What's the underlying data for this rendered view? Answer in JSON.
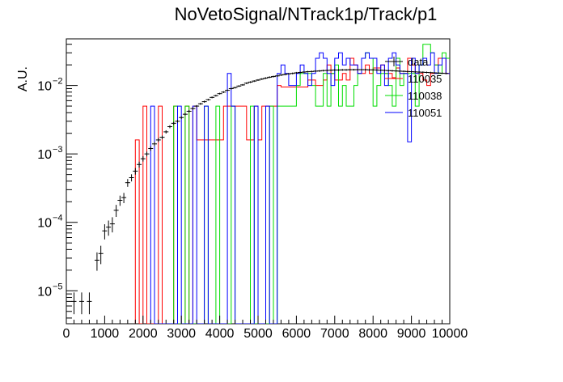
{
  "chart_data": {
    "type": "histogram-step",
    "title": "NoVetoSignal/NTrack1p/Track/p1",
    "xlabel": "",
    "ylabel": "A.U.",
    "xlim": [
      0,
      10000
    ],
    "ylim": [
      3.3e-06,
      0.048
    ],
    "yscale": "log",
    "grid": false,
    "legend_position": "top-right",
    "x_ticks": [
      0,
      1000,
      2000,
      3000,
      4000,
      5000,
      6000,
      7000,
      8000,
      9000,
      10000
    ],
    "y_ticks": [
      {
        "value": 1e-05,
        "base": "10",
        "exp": "−5"
      },
      {
        "value": 0.0001,
        "base": "10",
        "exp": "−4"
      },
      {
        "value": 0.001,
        "base": "10",
        "exp": "−3"
      },
      {
        "value": 0.01,
        "base": "10",
        "exp": "−2"
      }
    ],
    "data_points": {
      "name": "data",
      "color": "#000000",
      "x": [
        200,
        400,
        600,
        800,
        900,
        1000,
        1100,
        1200,
        1300,
        1400,
        1500,
        1600,
        1700,
        1800,
        1900,
        2000,
        2100,
        2200,
        2300,
        2400,
        2500,
        2600,
        2700,
        2800,
        2900,
        3000,
        3100,
        3200,
        3300,
        3400,
        3500,
        3600,
        3700,
        3800,
        3900,
        4000,
        4100,
        4200,
        4300,
        4400,
        4500,
        4600,
        4700,
        4800,
        4900,
        5000,
        5100,
        5200,
        5300,
        5400,
        5500,
        5600,
        5700,
        5800,
        5900,
        6000,
        6100,
        6200,
        6300,
        6400,
        6500,
        6600,
        6700,
        6800,
        6900,
        7000,
        7100,
        7200,
        7300,
        7400,
        7500,
        7600,
        7700,
        7800,
        7900,
        8000,
        8100,
        8200,
        8300,
        8400,
        8500,
        8600,
        8700,
        8800,
        8900,
        9000,
        9100,
        9200,
        9300,
        9400,
        9500,
        9600,
        9700,
        9800,
        9900
      ],
      "y": [
        7e-06,
        7e-06,
        7e-06,
        2.8e-05,
        3.5e-05,
        7.5e-05,
        8.5e-05,
        9.5e-05,
        0.00015,
        0.00021,
        0.00023,
        0.00038,
        0.00045,
        0.00056,
        0.0007,
        0.00085,
        0.001,
        0.0012,
        0.0014,
        0.0016,
        0.00175,
        0.0021,
        0.0025,
        0.0028,
        0.003,
        0.0034,
        0.0038,
        0.0042,
        0.0046,
        0.005,
        0.0054,
        0.0058,
        0.0062,
        0.0067,
        0.0071,
        0.0076,
        0.008,
        0.0085,
        0.009,
        0.0093,
        0.0098,
        0.0102,
        0.0108,
        0.0112,
        0.0116,
        0.012,
        0.0124,
        0.0128,
        0.0132,
        0.0135,
        0.0138,
        0.0142,
        0.0145,
        0.0148,
        0.015,
        0.0153,
        0.0155,
        0.0157,
        0.0159,
        0.016,
        0.0162,
        0.0163,
        0.0165,
        0.0166,
        0.0167,
        0.0168,
        0.0168,
        0.0169,
        0.0169,
        0.017,
        0.017,
        0.017,
        0.017,
        0.017,
        0.0169,
        0.0169,
        0.0168,
        0.0167,
        0.0166,
        0.0165,
        0.0164,
        0.0163,
        0.0162,
        0.0161,
        0.016,
        0.0159,
        0.0158,
        0.0157,
        0.0156,
        0.0155,
        0.0154,
        0.0153,
        0.0152,
        0.0151,
        0.015
      ],
      "rel_err": [
        0.35,
        0.35,
        0.35,
        0.3,
        0.3,
        0.25,
        0.25,
        0.25,
        0.2,
        0.17,
        0.17,
        0.13,
        0.12,
        0.11,
        0.1,
        0.09,
        0.08,
        0.075,
        0.07,
        0.065,
        0.06,
        0.055,
        0.05,
        0.05,
        0.045,
        0.045,
        0.04,
        0.04,
        0.04,
        0.035,
        0.035,
        0.035,
        0.03,
        0.03,
        0.03,
        0.03,
        0.03,
        0.03,
        0.03,
        0.03,
        0.03,
        0.03,
        0.03,
        0.03,
        0.03,
        0.03,
        0.03,
        0.03,
        0.03,
        0.03,
        0.03,
        0.03,
        0.03,
        0.03,
        0.03,
        0.03,
        0.03,
        0.03,
        0.03,
        0.03,
        0.03,
        0.03,
        0.03,
        0.03,
        0.03,
        0.03,
        0.03,
        0.03,
        0.03,
        0.03,
        0.03,
        0.03,
        0.03,
        0.03,
        0.03,
        0.03,
        0.03,
        0.03,
        0.03,
        0.03,
        0.03,
        0.03,
        0.03,
        0.03,
        0.03,
        0.03,
        0.03,
        0.03,
        0.03,
        0.03,
        0.03,
        0.03,
        0.03,
        0.03,
        0.03
      ]
    },
    "series": [
      {
        "name": "110035",
        "color": "#ff0000",
        "bin_width": 100,
        "edges_start": 1800,
        "values": [
          0.0016,
          0,
          0.005,
          0,
          0,
          0,
          0.005,
          0,
          0,
          0,
          0.005,
          0,
          0,
          0.005,
          0,
          0.005,
          0.0016,
          0.0016,
          0.0016,
          0.0016,
          0.0016,
          0.0016,
          0.0016,
          0.005,
          0.005,
          0.005,
          0.005,
          0.005,
          0.005,
          0.0016,
          0.0016,
          0.005,
          0.0016,
          0.005,
          0.005,
          0.005,
          0.005,
          0.01,
          0.0095,
          0.0095,
          0.0095,
          0.0095,
          0.0095,
          0.0095,
          0.0095,
          0.012,
          0.012,
          0.01,
          0.01,
          0.012,
          0.02,
          0.015,
          0.012,
          0.012,
          0.015,
          0.012,
          0.025,
          0.02,
          0.015,
          0.015,
          0.02,
          0.015,
          0.018,
          0.018,
          0.02,
          0.015,
          0.015,
          0.013,
          0.018,
          0.015,
          0.015,
          0.025,
          0.02,
          0.015,
          0.015,
          0.012,
          0.01,
          0.015,
          0.02,
          0.025,
          0.025,
          0.015
        ]
      },
      {
        "name": "110038",
        "color": "#00dd00",
        "bin_width": 100,
        "edges_start": 2800,
        "values": [
          0.005,
          0,
          0,
          0.005,
          0,
          0,
          0,
          0,
          0.005,
          0,
          0,
          0.005,
          0,
          0,
          0,
          0.005,
          0,
          0,
          0,
          0,
          0.005,
          0,
          0,
          0,
          0,
          0.005,
          0,
          0.005,
          0.005,
          0.005,
          0.005,
          0.005,
          0.01,
          0.015,
          0.015,
          0.015,
          0.01,
          0.005,
          0.005,
          0.015,
          0.005,
          0.015,
          0.02,
          0.005,
          0.01,
          0.005,
          0.005,
          0.01,
          0.015,
          0.025,
          0.03,
          0.025,
          0.005,
          0.01,
          0.015,
          0.015,
          0.01,
          0.005,
          0.025,
          0.01,
          0.015,
          0.015,
          0.015,
          0.005,
          0.02,
          0.04,
          0.04,
          0.03,
          0.02,
          0.015,
          0.03,
          0.025
        ]
      },
      {
        "name": "110051",
        "color": "#0000ff",
        "bin_width": 100,
        "edges_start": 2200,
        "values": [
          0.005,
          0,
          0,
          0,
          0,
          0,
          0,
          0.005,
          0,
          0,
          0,
          0.005,
          0,
          0,
          0.005,
          0,
          0,
          0,
          0,
          0,
          0.015,
          0.005,
          0,
          0,
          0,
          0,
          0,
          0.005,
          0,
          0,
          0.005,
          0,
          0,
          0.015,
          0.02,
          0.015,
          0.01,
          0.01,
          0.015,
          0.02,
          0.015,
          0.01,
          0.015,
          0.025,
          0.03,
          0.025,
          0.015,
          0.01,
          0.025,
          0.03,
          0.02,
          0.025,
          0.02,
          0.02,
          0.015,
          0.025,
          0.03,
          0.025,
          0.025,
          0.015,
          0.02,
          0.01,
          0.025,
          0.03,
          0.02,
          0.015,
          0.015,
          0.0015,
          0.025,
          0.015,
          0.02,
          0.025,
          0.02,
          0.03,
          0.015,
          0.02,
          0.025,
          0.015
        ]
      }
    ]
  }
}
